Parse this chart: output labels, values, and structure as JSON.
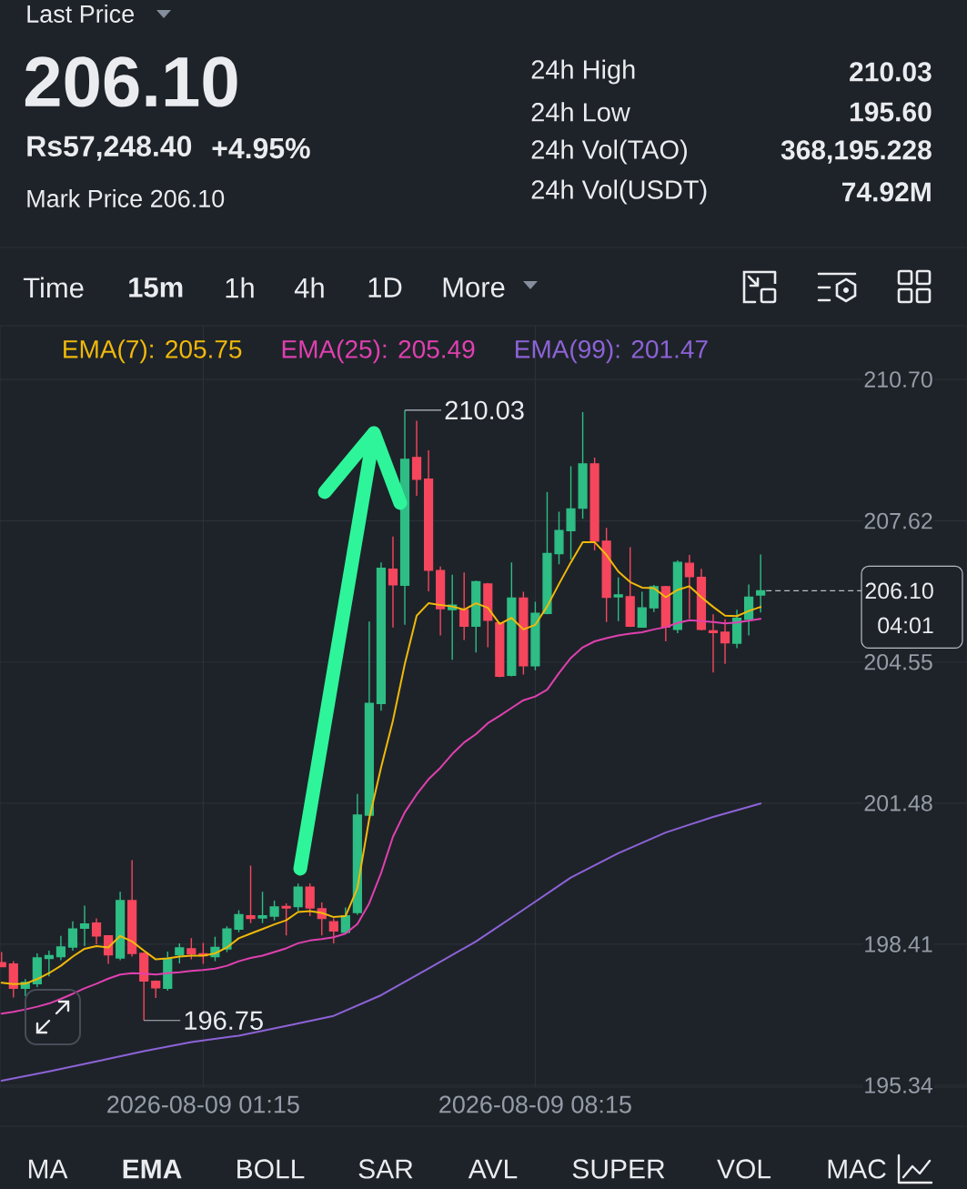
{
  "chart_data": {
    "type": "candlestick",
    "x": [
      "2026-08-08T21:00",
      "2026-08-08T21:15",
      "2026-08-08T21:30",
      "2026-08-08T21:45",
      "2026-08-08T22:00",
      "2026-08-08T22:15",
      "2026-08-08T22:30",
      "2026-08-08T22:45",
      "2026-08-08T23:00",
      "2026-08-08T23:15",
      "2026-08-08T23:30",
      "2026-08-08T23:45",
      "2026-08-09T00:00",
      "2026-08-09T00:15",
      "2026-08-09T00:30",
      "2026-08-09T00:45",
      "2026-08-09T01:00",
      "2026-08-09T01:15",
      "2026-08-09T01:30",
      "2026-08-09T01:45",
      "2026-08-09T02:00",
      "2026-08-09T02:15",
      "2026-08-09T02:30",
      "2026-08-09T02:45",
      "2026-08-09T03:00",
      "2026-08-09T03:15",
      "2026-08-09T03:30",
      "2026-08-09T03:45",
      "2026-08-09T04:00",
      "2026-08-09T04:15",
      "2026-08-09T04:30",
      "2026-08-09T04:45",
      "2026-08-09T05:00",
      "2026-08-09T05:15",
      "2026-08-09T05:30",
      "2026-08-09T05:45",
      "2026-08-09T06:00",
      "2026-08-09T06:15",
      "2026-08-09T06:30",
      "2026-08-09T06:45",
      "2026-08-09T07:00",
      "2026-08-09T07:15",
      "2026-08-09T07:30",
      "2026-08-09T07:45",
      "2026-08-09T08:00",
      "2026-08-09T08:15",
      "2026-08-09T08:30",
      "2026-08-09T08:45",
      "2026-08-09T09:00",
      "2026-08-09T09:15",
      "2026-08-09T09:30",
      "2026-08-09T09:45",
      "2026-08-09T10:00",
      "2026-08-09T10:15",
      "2026-08-09T10:30",
      "2026-08-09T10:45",
      "2026-08-09T11:00",
      "2026-08-09T11:15",
      "2026-08-09T11:30",
      "2026-08-09T11:45",
      "2026-08-09T12:00",
      "2026-08-09T12:15",
      "2026-08-09T12:30",
      "2026-08-09T12:45",
      "2026-08-09T13:00"
    ],
    "ohlc": [
      [
        198.01,
        198.24,
        197.91,
        197.92
      ],
      [
        197.98,
        198.04,
        197.25,
        197.45
      ],
      [
        197.45,
        197.65,
        197.28,
        197.58
      ],
      [
        197.55,
        198.21,
        197.48,
        198.11
      ],
      [
        198.1,
        198.27,
        197.71,
        198.16
      ],
      [
        198.14,
        198.59,
        198.06,
        198.35
      ],
      [
        198.35,
        198.91,
        198.27,
        198.74
      ],
      [
        198.76,
        199.25,
        198.37,
        198.85
      ],
      [
        198.87,
        198.97,
        198.41,
        198.59
      ],
      [
        198.59,
        198.6,
        197.98,
        198.18
      ],
      [
        198.11,
        199.55,
        198.06,
        199.36
      ],
      [
        199.36,
        200.24,
        198.14,
        198.21
      ],
      [
        198.21,
        198.23,
        196.75,
        197.61
      ],
      [
        197.6,
        197.62,
        197.24,
        197.46
      ],
      [
        197.45,
        198.25,
        197.4,
        198.08
      ],
      [
        198.18,
        198.43,
        197.99,
        198.33
      ],
      [
        198.31,
        198.54,
        198.08,
        198.2
      ],
      [
        198.2,
        198.44,
        197.98,
        198.16
      ],
      [
        198.14,
        198.57,
        198.04,
        198.34
      ],
      [
        198.31,
        198.8,
        198.24,
        198.74
      ],
      [
        198.74,
        199.15,
        198.67,
        199.05
      ],
      [
        199.03,
        200.12,
        198.87,
        198.97
      ],
      [
        198.98,
        199.55,
        198.87,
        199.03
      ],
      [
        199.02,
        199.36,
        198.93,
        199.22
      ],
      [
        199.23,
        199.3,
        198.6,
        199.2
      ],
      [
        199.23,
        199.73,
        199.13,
        199.65
      ],
      [
        199.65,
        199.73,
        199.02,
        199.2
      ],
      [
        199.18,
        199.32,
        198.6,
        198.97
      ],
      [
        198.9,
        198.97,
        198.43,
        198.7
      ],
      [
        198.67,
        199.21,
        198.64,
        199.03
      ],
      [
        199.1,
        201.68,
        199.05,
        201.22
      ],
      [
        201.22,
        205.43,
        201.2,
        203.65
      ],
      [
        203.65,
        206.72,
        203.49,
        206.59
      ],
      [
        206.57,
        207.28,
        205.3,
        206.23
      ],
      [
        206.22,
        210.03,
        205.36,
        208.96
      ],
      [
        209.0,
        209.8,
        208.17,
        208.53
      ],
      [
        208.53,
        209.16,
        206.09,
        206.55
      ],
      [
        206.54,
        206.63,
        205.13,
        205.71
      ],
      [
        205.69,
        206.45,
        204.6,
        205.79
      ],
      [
        205.69,
        206.5,
        205.03,
        205.33
      ],
      [
        205.33,
        206.32,
        204.76,
        206.3
      ],
      [
        206.25,
        206.27,
        204.87,
        205.46
      ],
      [
        205.4,
        205.42,
        204.22,
        204.24
      ],
      [
        204.26,
        206.72,
        204.24,
        205.94
      ],
      [
        205.94,
        206.08,
        204.28,
        204.47
      ],
      [
        204.47,
        205.86,
        204.37,
        205.61
      ],
      [
        205.61,
        208.25,
        205.59,
        206.91
      ],
      [
        206.91,
        207.82,
        206.68,
        207.41
      ],
      [
        207.41,
        208.81,
        206.78,
        207.88
      ],
      [
        207.9,
        209.99,
        207.67,
        208.86
      ],
      [
        208.86,
        209.0,
        206.98,
        207.18
      ],
      [
        207.18,
        207.47,
        205.42,
        205.96
      ],
      [
        205.97,
        206.39,
        205.44,
        206.01
      ],
      [
        205.97,
        207.05,
        205.31,
        205.33
      ],
      [
        205.31,
        206.08,
        205.3,
        205.73
      ],
      [
        205.73,
        206.23,
        205.64,
        206.19
      ],
      [
        206.19,
        206.21,
        205.0,
        205.31
      ],
      [
        205.26,
        206.76,
        205.18,
        206.72
      ],
      [
        206.7,
        206.88,
        205.49,
        206.41
      ],
      [
        206.39,
        206.58,
        205.24,
        205.26
      ],
      [
        205.23,
        205.59,
        204.32,
        205.19
      ],
      [
        205.2,
        205.48,
        204.51,
        204.97
      ],
      [
        204.96,
        205.69,
        204.85,
        205.5
      ],
      [
        205.48,
        206.24,
        205.13,
        205.96
      ],
      [
        206.01,
        206.89,
        205.63,
        206.1
      ]
    ],
    "colors": [
      "#f6465d",
      "#f6465d",
      "#2ebd85",
      "#2ebd85",
      "#2ebd85",
      "#2ebd85",
      "#2ebd85",
      "#2ebd85",
      "#f6465d",
      "#f6465d",
      "#2ebd85",
      "#f6465d",
      "#f6465d",
      "#f6465d",
      "#2ebd85",
      "#2ebd85",
      "#f6465d",
      "#f6465d",
      "#2ebd85",
      "#2ebd85",
      "#2ebd85",
      "#f6465d",
      "#2ebd85",
      "#2ebd85",
      "#f6465d",
      "#2ebd85",
      "#f6465d",
      "#f6465d",
      "#f6465d",
      "#2ebd85",
      "#2ebd85",
      "#2ebd85",
      "#2ebd85",
      "#f6465d",
      "#2ebd85",
      "#f6465d",
      "#f6465d",
      "#f6465d",
      "#2ebd85",
      "#f6465d",
      "#2ebd85",
      "#f6465d",
      "#f6465d",
      "#2ebd85",
      "#f6465d",
      "#2ebd85",
      "#2ebd85",
      "#2ebd85",
      "#2ebd85",
      "#2ebd85",
      "#f6465d",
      "#f6465d",
      "#2ebd85",
      "#f6465d",
      "#2ebd85",
      "#2ebd85",
      "#f6465d",
      "#2ebd85",
      "#f6465d",
      "#f6465d",
      "#f6465d",
      "#f6465d",
      "#2ebd85",
      "#2ebd85",
      "#2ebd85"
    ],
    "series": [
      {
        "name": "EMA(7): 205.75",
        "color": "#f0b90b",
        "type": "line",
        "values": [
          197.57,
          197.54,
          197.55,
          197.65,
          197.78,
          197.94,
          198.14,
          198.31,
          198.37,
          198.34,
          198.59,
          198.47,
          198.27,
          198.08,
          198.1,
          198.14,
          198.16,
          198.16,
          198.21,
          198.34,
          198.54,
          198.64,
          198.74,
          198.84,
          198.93,
          199.11,
          199.13,
          199.09,
          199.0,
          199.02,
          199.63,
          201.14,
          202.26,
          203.28,
          204.51,
          205.56,
          205.83,
          205.79,
          205.76,
          205.69,
          205.83,
          205.73,
          205.38,
          205.51,
          205.26,
          205.36,
          205.76,
          206.25,
          206.72,
          207.16,
          207.16,
          206.88,
          206.52,
          206.29,
          206.17,
          206.16,
          205.96,
          206.12,
          206.2,
          205.96,
          205.75,
          205.56,
          205.55,
          205.66,
          205.75
        ]
      },
      {
        "name": "EMA(25): 205.49",
        "color": "#e040b0",
        "type": "line",
        "values": [
          196.9,
          196.94,
          196.99,
          197.05,
          197.12,
          197.22,
          197.33,
          197.45,
          197.55,
          197.66,
          197.75,
          197.78,
          197.77,
          197.75,
          197.78,
          197.8,
          197.83,
          197.85,
          197.88,
          197.94,
          198.04,
          198.11,
          198.16,
          198.24,
          198.32,
          198.43,
          198.49,
          198.52,
          198.56,
          198.64,
          198.85,
          199.3,
          199.96,
          200.75,
          201.28,
          201.67,
          202.0,
          202.25,
          202.55,
          202.8,
          202.98,
          203.22,
          203.38,
          203.55,
          203.72,
          203.8,
          203.95,
          204.31,
          204.64,
          204.87,
          205.0,
          205.07,
          205.13,
          205.17,
          205.2,
          205.26,
          205.31,
          205.4,
          205.46,
          205.44,
          205.42,
          205.39,
          205.41,
          205.45,
          205.49
        ]
      },
      {
        "name": "EMA(99): 201.47",
        "color": "#8d63d8",
        "type": "line",
        "x": [
          "2026-08-08T21:00",
          "2026-08-08T22:00",
          "2026-08-08T23:00",
          "2026-08-09T00:00",
          "2026-08-09T01:00",
          "2026-08-09T02:00",
          "2026-08-09T03:00",
          "2026-08-09T04:00",
          "2026-08-09T05:00",
          "2026-08-09T06:00",
          "2026-08-09T07:00",
          "2026-08-09T08:00",
          "2026-08-09T09:00",
          "2026-08-09T10:00",
          "2026-08-09T11:00",
          "2026-08-09T12:00",
          "2026-08-09T13:00"
        ],
        "values": [
          195.44,
          195.64,
          195.86,
          196.08,
          196.28,
          196.42,
          196.63,
          196.85,
          197.3,
          197.88,
          198.47,
          199.16,
          199.86,
          200.39,
          200.84,
          201.18,
          201.47
        ]
      }
    ],
    "xlim": [
      "2026-08-08T20:58",
      "2026-08-09T17:21"
    ],
    "xticks": [
      {
        "value": "2026-08-09T01:15",
        "label": "2026-08-09 01:15"
      },
      {
        "value": "2026-08-09T08:15",
        "label": "2026-08-09 08:15"
      }
    ],
    "ylim": [
      195.3,
      211.87
    ],
    "yticks": [
      {
        "value": 210.7,
        "label": "210.70"
      },
      207.62,
      204.55,
      201.48,
      198.41,
      195.34
    ],
    "grid": true,
    "legend": "top left",
    "ref_lines": [
      {
        "axis": "y",
        "value": 206.1,
        "label": "206.10",
        "color": "#b7bdc6",
        "line_style": "dashed"
      }
    ],
    "annotations": [
      "Last Price",
      "206.10",
      "Rs57,248.40",
      "+4.95%",
      "Mark Price 206.10",
      "24h High",
      "210.03",
      "24h Low",
      "195.60",
      "24h Vol(TAO)",
      "368,195.228",
      "24h Vol(USDT)",
      "74.92M",
      "Time",
      "15m",
      "1h",
      "4h",
      "1D",
      "More",
      "MA",
      "EMA",
      "BOLL",
      "SAR",
      "AVL",
      "SUPER",
      "VOL",
      "MAC",
      {
        "text": "210.03",
        "x": "2026-08-09T05:30",
        "y": 210.03
      },
      {
        "text": "196.75",
        "x": "2026-08-09T00:00",
        "y": 196.75
      },
      "04:01"
    ]
  }
}
